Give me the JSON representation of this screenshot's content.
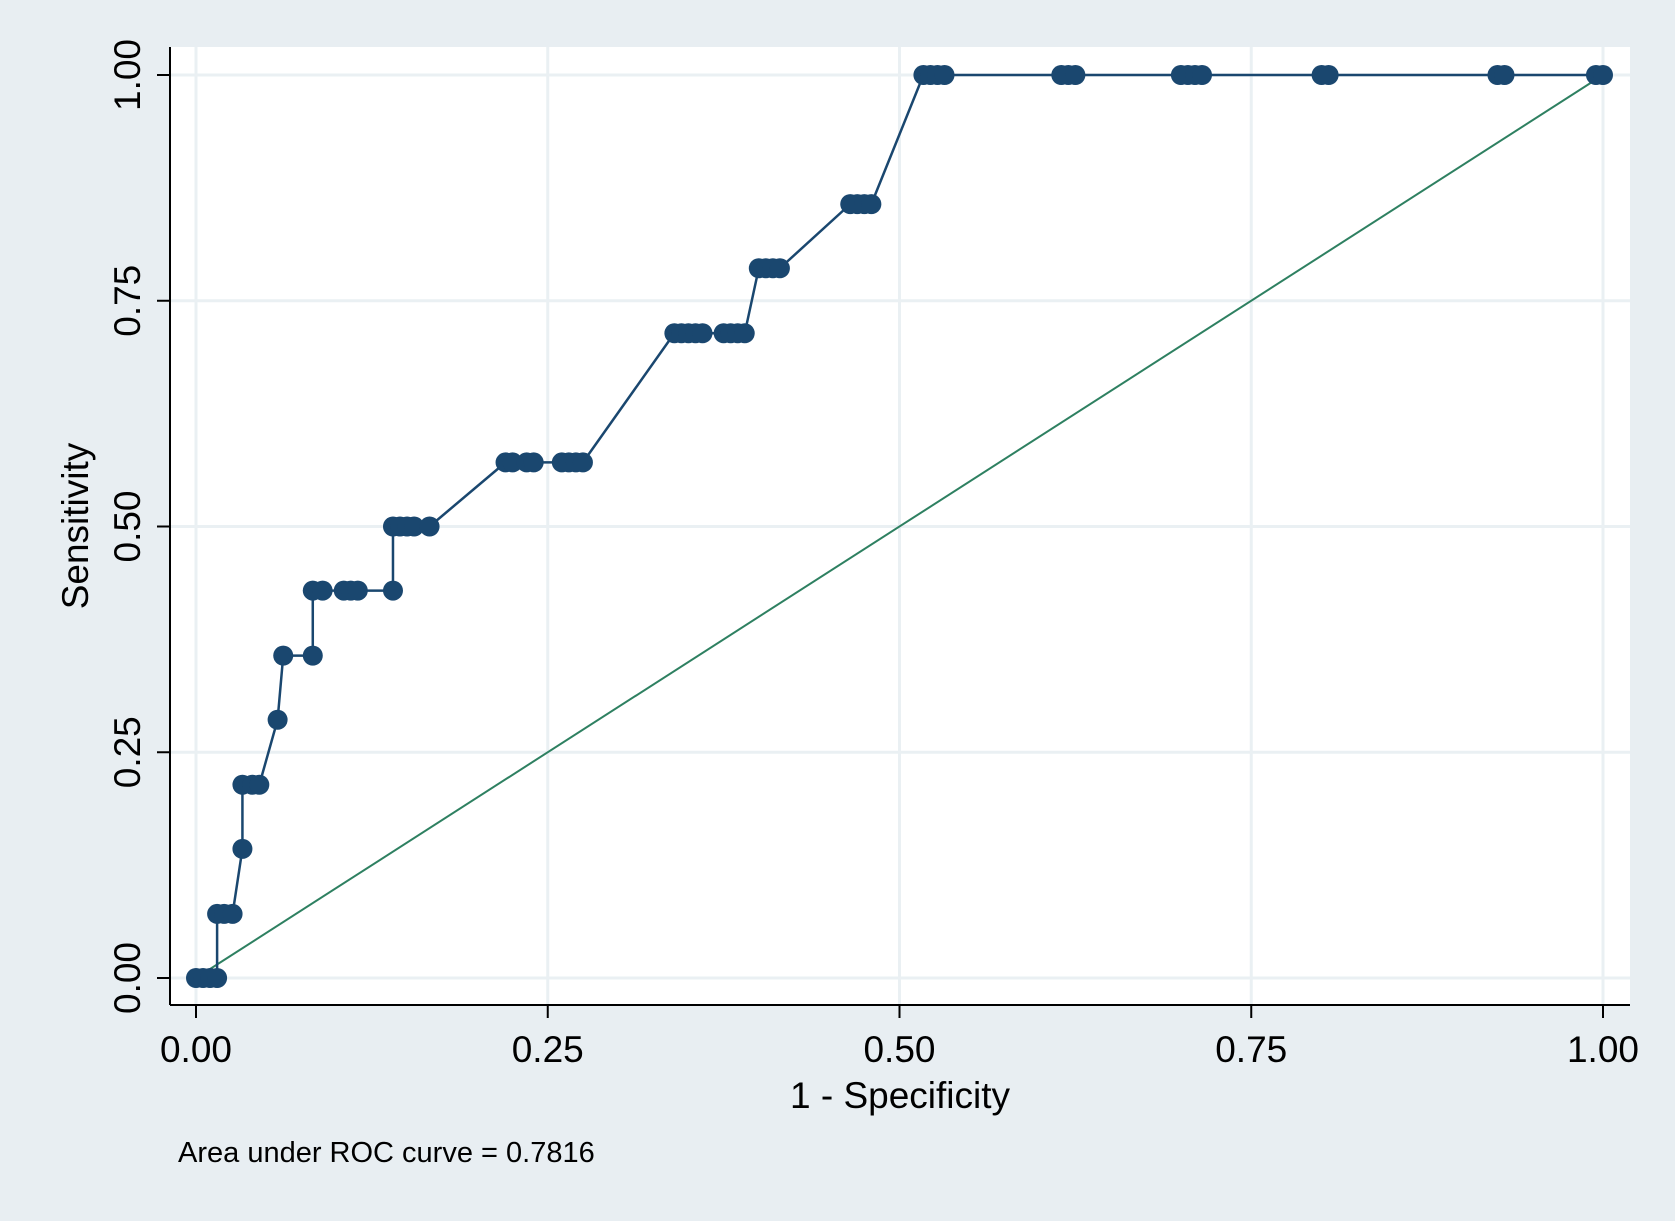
{
  "chart_data": {
    "type": "line",
    "xlabel": "1 - Specificity",
    "ylabel": "Sensitivity",
    "xlim": [
      0,
      1
    ],
    "ylim": [
      0,
      1
    ],
    "x_ticks": [
      "0.00",
      "0.25",
      "0.50",
      "0.75",
      "1.00"
    ],
    "y_ticks": [
      "0.00",
      "0.25",
      "0.50",
      "0.75",
      "1.00"
    ],
    "grid": true,
    "annotation": "Area under ROC curve = 0.7816",
    "colors": {
      "outer_background": "#e8eef2",
      "plot_background": "#ffffff",
      "grid": "#eaf0f3",
      "curve": "#1a476f",
      "reference_line": "#2e8061"
    },
    "series": [
      {
        "points": [
          [
            0.0,
            0.0
          ],
          [
            0.005,
            0.0
          ],
          [
            0.01,
            0.0
          ],
          [
            0.015,
            0.0
          ],
          [
            0.015,
            0.071
          ],
          [
            0.02,
            0.071
          ],
          [
            0.026,
            0.071
          ],
          [
            0.033,
            0.143
          ],
          [
            0.033,
            0.214
          ],
          [
            0.04,
            0.214
          ],
          [
            0.045,
            0.214
          ],
          [
            0.058,
            0.286
          ],
          [
            0.062,
            0.357
          ],
          [
            0.083,
            0.357
          ],
          [
            0.083,
            0.429
          ],
          [
            0.09,
            0.429
          ],
          [
            0.105,
            0.429
          ],
          [
            0.11,
            0.429
          ],
          [
            0.115,
            0.429
          ],
          [
            0.14,
            0.429
          ],
          [
            0.14,
            0.5
          ],
          [
            0.145,
            0.5
          ],
          [
            0.15,
            0.5
          ],
          [
            0.155,
            0.5
          ],
          [
            0.166,
            0.5
          ],
          [
            0.22,
            0.571
          ],
          [
            0.225,
            0.571
          ],
          [
            0.235,
            0.571
          ],
          [
            0.24,
            0.571
          ],
          [
            0.26,
            0.571
          ],
          [
            0.265,
            0.571
          ],
          [
            0.27,
            0.571
          ],
          [
            0.275,
            0.571
          ],
          [
            0.34,
            0.714
          ],
          [
            0.345,
            0.714
          ],
          [
            0.35,
            0.714
          ],
          [
            0.355,
            0.714
          ],
          [
            0.36,
            0.714
          ],
          [
            0.375,
            0.714
          ],
          [
            0.38,
            0.714
          ],
          [
            0.385,
            0.714
          ],
          [
            0.39,
            0.714
          ],
          [
            0.4,
            0.786
          ],
          [
            0.405,
            0.786
          ],
          [
            0.41,
            0.786
          ],
          [
            0.415,
            0.786
          ],
          [
            0.465,
            0.857
          ],
          [
            0.47,
            0.857
          ],
          [
            0.475,
            0.857
          ],
          [
            0.48,
            0.857
          ],
          [
            0.517,
            1.0
          ],
          [
            0.522,
            1.0
          ],
          [
            0.527,
            1.0
          ],
          [
            0.532,
            1.0
          ],
          [
            0.615,
            1.0
          ],
          [
            0.62,
            1.0
          ],
          [
            0.625,
            1.0
          ],
          [
            0.7,
            1.0
          ],
          [
            0.705,
            1.0
          ],
          [
            0.71,
            1.0
          ],
          [
            0.715,
            1.0
          ],
          [
            0.8,
            1.0
          ],
          [
            0.805,
            1.0
          ],
          [
            0.925,
            1.0
          ],
          [
            0.93,
            1.0
          ],
          [
            0.995,
            1.0
          ],
          [
            1.0,
            1.0
          ]
        ]
      },
      {
        "points": [
          [
            0,
            0
          ],
          [
            1,
            1
          ]
        ]
      }
    ]
  }
}
